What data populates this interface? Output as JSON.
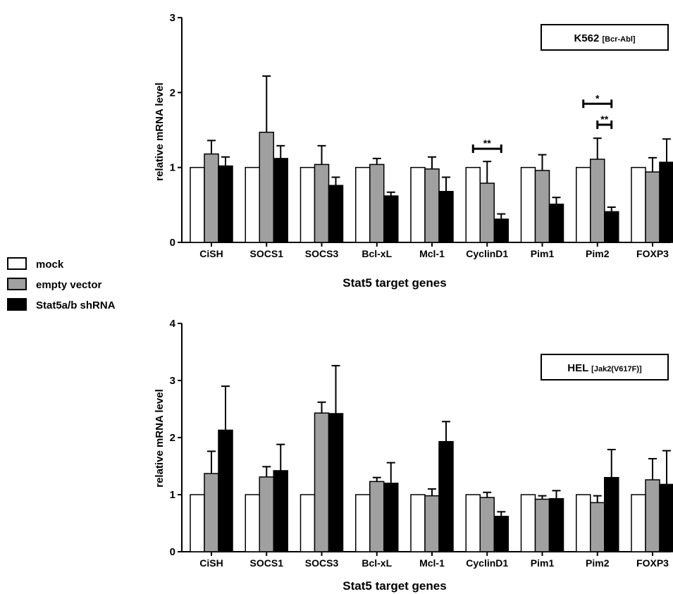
{
  "legend": [
    {
      "name": "mock",
      "color": "#ffffff"
    },
    {
      "name": "empty vector",
      "color": "#a0a0a0"
    },
    {
      "name": "Stat5a/b shRNA",
      "color": "#000000"
    }
  ],
  "chart_data": [
    {
      "type": "bar",
      "title": "K562",
      "title_sub": "[Bcr-Abl]",
      "xlabel": "Stat5 target genes",
      "ylabel": "relative mRNA level",
      "ylim": [
        0,
        3
      ],
      "yticks": [
        0,
        1,
        2,
        3
      ],
      "categories": [
        "CiSH",
        "SOCS1",
        "SOCS3",
        "Bcl-xL",
        "Mcl-1",
        "CyclinD1",
        "Pim1",
        "Pim2",
        "FOXP3"
      ],
      "series": [
        {
          "name": "mock",
          "values": [
            1,
            1,
            1,
            1,
            1,
            1,
            1,
            1,
            1
          ],
          "errors": [
            0,
            0,
            0,
            0,
            0,
            0,
            0,
            0,
            0
          ]
        },
        {
          "name": "empty vector",
          "values": [
            1.18,
            1.47,
            1.04,
            1.04,
            0.98,
            0.79,
            0.96,
            1.11,
            0.94
          ],
          "errors": [
            0.18,
            0.75,
            0.25,
            0.08,
            0.16,
            0.29,
            0.21,
            0.28,
            0.19
          ]
        },
        {
          "name": "Stat5a/b shRNA",
          "values": [
            1.02,
            1.12,
            0.76,
            0.62,
            0.68,
            0.31,
            0.51,
            0.41,
            1.07
          ],
          "errors": [
            0.12,
            0.17,
            0.11,
            0.05,
            0.19,
            0.07,
            0.09,
            0.06,
            0.31
          ]
        }
      ],
      "annotations": [
        {
          "text": "**",
          "category": "CyclinD1",
          "from": 0,
          "to": 2,
          "y": 1.25
        },
        {
          "text": "*",
          "category": "Pim2",
          "from": 0,
          "to": 2,
          "y": 1.85
        },
        {
          "text": "**",
          "category": "Pim2",
          "from": 1,
          "to": 2,
          "y": 1.57
        }
      ]
    },
    {
      "type": "bar",
      "title": "HEL",
      "title_sub": "[Jak2(V617F)]",
      "xlabel": "Stat5 target genes",
      "ylabel": "relative mRNA level",
      "ylim": [
        0,
        4
      ],
      "yticks": [
        0,
        1,
        2,
        3,
        4
      ],
      "categories": [
        "CiSH",
        "SOCS1",
        "SOCS3",
        "Bcl-xL",
        "Mcl-1",
        "CyclinD1",
        "Pim1",
        "Pim2",
        "FOXP3"
      ],
      "series": [
        {
          "name": "mock",
          "values": [
            1,
            1,
            1,
            1,
            1,
            1,
            1,
            1,
            1
          ],
          "errors": [
            0,
            0,
            0,
            0,
            0,
            0,
            0,
            0,
            0
          ]
        },
        {
          "name": "empty vector",
          "values": [
            1.37,
            1.31,
            2.43,
            1.23,
            0.98,
            0.95,
            0.92,
            0.86,
            1.26
          ],
          "errors": [
            0.39,
            0.18,
            0.19,
            0.07,
            0.12,
            0.09,
            0.06,
            0.12,
            0.37
          ]
        },
        {
          "name": "Stat5a/b shRNA",
          "values": [
            2.13,
            1.42,
            2.42,
            1.2,
            1.93,
            0.62,
            0.93,
            1.3,
            1.18
          ],
          "errors": [
            0.77,
            0.46,
            0.84,
            0.36,
            0.35,
            0.08,
            0.14,
            0.49,
            0.59
          ]
        }
      ],
      "annotations": []
    }
  ]
}
